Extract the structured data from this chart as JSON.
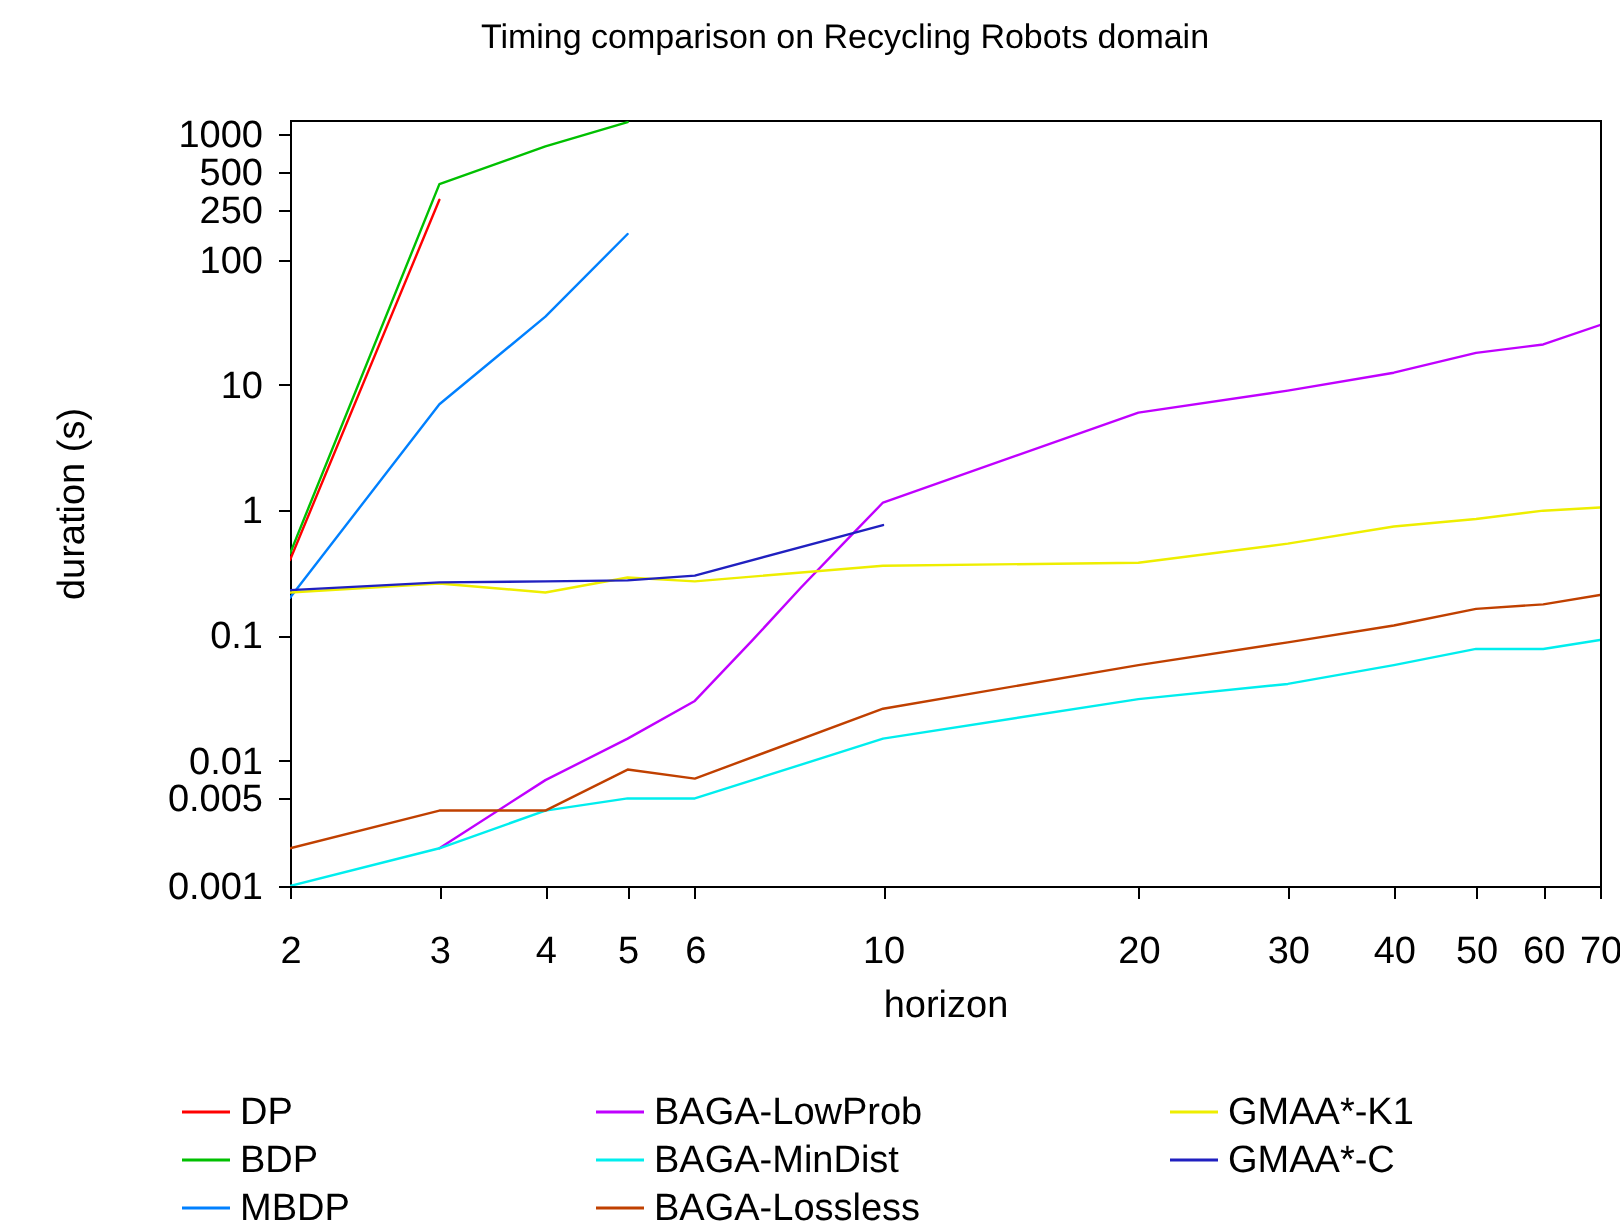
{
  "chart_data": {
    "type": "line",
    "title": "Timing comparison on Recycling Robots domain",
    "xlabel": "horizon",
    "ylabel": "duration (s)",
    "log": "xy",
    "xlim": [
      2,
      70
    ],
    "xticks": [
      2,
      3,
      4,
      5,
      6,
      10,
      20,
      30,
      40,
      50,
      60,
      70
    ],
    "ylim": [
      0.001,
      1300
    ],
    "yticks": [
      0.001,
      0.005,
      0.01,
      0.1,
      1,
      10,
      100,
      250,
      500,
      1000
    ],
    "grid": false,
    "legend": "bottom",
    "marker": "none",
    "line_style": "solid",
    "series": [
      {
        "name": "DP",
        "color": "#ff0000",
        "x": [
          2,
          3
        ],
        "values": [
          0.4,
          300
        ]
      },
      {
        "name": "BDP",
        "color": "#00c000",
        "x": [
          2,
          3,
          4,
          5
        ],
        "values": [
          0.45,
          400,
          800,
          1250
        ]
      },
      {
        "name": "MBDP",
        "color": "#0080ff",
        "x": [
          2,
          3,
          4,
          5
        ],
        "values": [
          0.2,
          7,
          35,
          160
        ]
      },
      {
        "name": "BAGA-LowProb",
        "color": "#c000ff",
        "x": [
          3,
          4,
          5,
          6,
          7,
          8,
          9,
          10,
          20,
          30,
          40,
          50,
          60,
          70
        ],
        "values": [
          0.002,
          0.007,
          0.015,
          0.03,
          0.09,
          0.24,
          0.55,
          1.15,
          6,
          9,
          12.5,
          18,
          21,
          30
        ]
      },
      {
        "name": "BAGA-MinDist",
        "color": "#00eeee",
        "x": [
          2,
          3,
          4,
          5,
          6,
          10,
          20,
          30,
          40,
          50,
          60,
          70
        ],
        "values": [
          0.001,
          0.002,
          0.004,
          0.005,
          0.005,
          0.015,
          0.031,
          0.041,
          0.058,
          0.078,
          0.078,
          0.092
        ]
      },
      {
        "name": "BAGA-Lossless",
        "color": "#c04000",
        "x": [
          2,
          3,
          4,
          5,
          6,
          10,
          20,
          30,
          40,
          50,
          60,
          70
        ],
        "values": [
          0.002,
          0.004,
          0.004,
          0.0085,
          0.0072,
          0.026,
          0.058,
          0.088,
          0.12,
          0.163,
          0.177,
          0.21
        ]
      },
      {
        "name": "GMAA*-K1",
        "color": "#eeee00",
        "x": [
          2,
          3,
          4,
          5,
          6,
          10,
          20,
          30,
          40,
          50,
          60,
          70
        ],
        "values": [
          0.22,
          0.26,
          0.22,
          0.29,
          0.27,
          0.36,
          0.38,
          0.54,
          0.74,
          0.85,
          0.99,
          1.05
        ]
      },
      {
        "name": "GMAA*-C",
        "color": "#2020c0",
        "x": [
          2,
          3,
          4,
          5,
          6,
          10
        ],
        "values": [
          0.23,
          0.265,
          0.27,
          0.275,
          0.3,
          0.76
        ]
      }
    ]
  }
}
